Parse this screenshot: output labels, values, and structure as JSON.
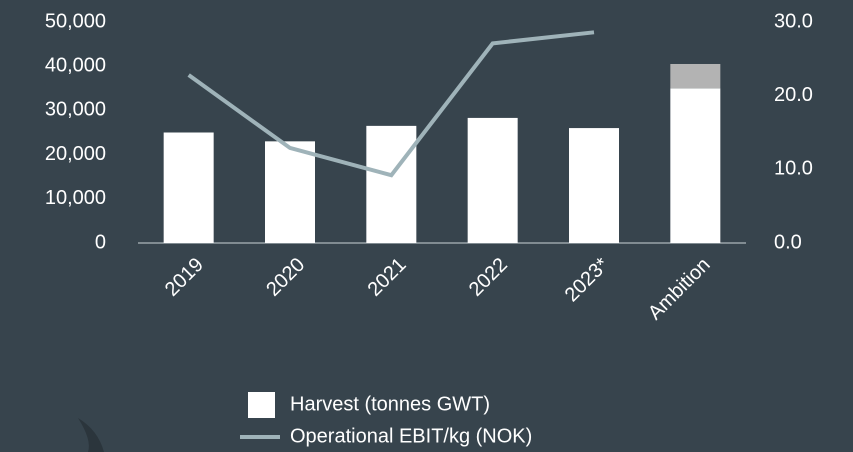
{
  "chart_data": {
    "type": "bar-line",
    "categories": [
      "2019",
      "2020",
      "2021",
      "2022",
      "2023*",
      "Ambition"
    ],
    "series": [
      {
        "name": "Harvest (tonnes GWT)",
        "type": "bar",
        "color": "#ffffff",
        "values": [
          25000,
          23000,
          26500,
          28300,
          26000,
          35000
        ]
      },
      {
        "type": "bar",
        "color": "#b3b3b3",
        "values": [
          null,
          null,
          null,
          null,
          null,
          5500
        ]
      },
      {
        "name": "Operational EBIT/kg (NOK)",
        "type": "line",
        "axis": "y2",
        "color": "#9fb3b9",
        "values": [
          22.8,
          12.9,
          9.2,
          27.1,
          28.6,
          null
        ]
      }
    ],
    "ylim": [
      0,
      50000
    ],
    "yticks": [
      0,
      {
        "value": 10000,
        "label": "10,000"
      },
      {
        "value": 20000,
        "label": "20,000"
      },
      {
        "value": 30000,
        "label": "30,000"
      },
      {
        "value": 40000,
        "label": "40,000"
      },
      {
        "value": 50000,
        "label": "50,000"
      }
    ],
    "y2lim": [
      0,
      30
    ],
    "y2ticks": [
      {
        "value": 0,
        "label": "0.0"
      },
      {
        "value": 10,
        "label": "10.0"
      },
      {
        "value": 20,
        "label": "20.0"
      },
      {
        "value": 30,
        "label": "30.0"
      }
    ],
    "grid": false
  }
}
